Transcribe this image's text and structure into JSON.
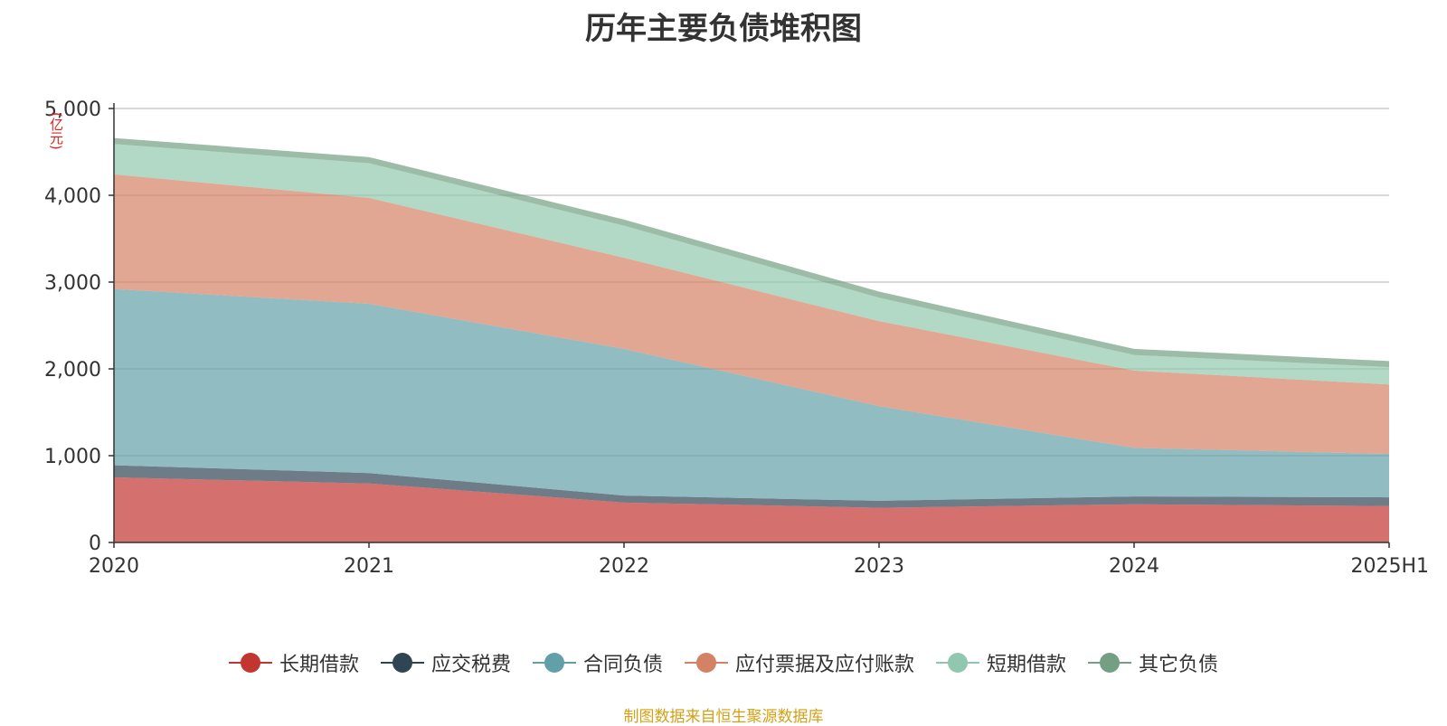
{
  "chart_data": {
    "type": "area",
    "stacked": true,
    "title": "历年主要负债堆积图",
    "unit": "(亿元)",
    "categories": [
      "2020",
      "2021",
      "2022",
      "2023",
      "2024",
      "2025H1"
    ],
    "ylim": [
      0,
      5000
    ],
    "yticks": [
      "0",
      "1,000",
      "2,000",
      "3,000",
      "4,000",
      "5,000"
    ],
    "grid": true,
    "legend_position": "bottom",
    "series": [
      {
        "name": "长期借款",
        "color": "#c23531",
        "values": [
          750,
          680,
          460,
          400,
          440,
          420
        ]
      },
      {
        "name": "应交税费",
        "color": "#2f4554",
        "values": [
          140,
          120,
          80,
          80,
          90,
          100
        ]
      },
      {
        "name": "合同负债",
        "color": "#61a0a8",
        "values": [
          2030,
          1950,
          1690,
          1090,
          560,
          500
        ]
      },
      {
        "name": "应付票据及应付账款",
        "color": "#d48265",
        "values": [
          1320,
          1220,
          1050,
          980,
          890,
          800
        ]
      },
      {
        "name": "短期借款",
        "color": "#91c7ae",
        "values": [
          350,
          400,
          370,
          270,
          180,
          200
        ]
      },
      {
        "name": "其它负债",
        "color": "#749f83",
        "values": [
          70,
          70,
          70,
          70,
          70,
          70
        ]
      }
    ]
  },
  "source": "制图数据来自恒生聚源数据库"
}
